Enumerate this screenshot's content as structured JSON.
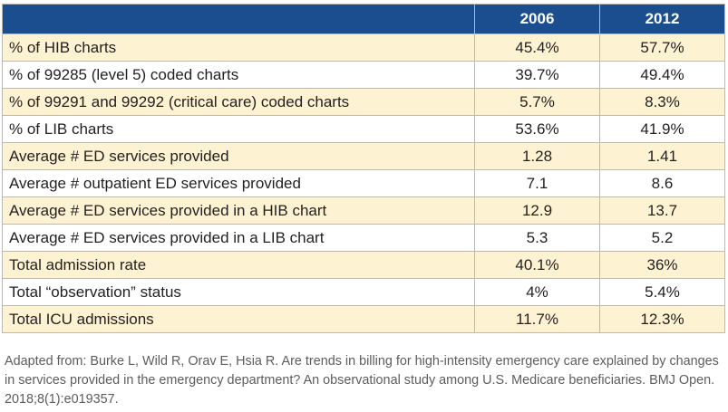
{
  "table": {
    "columns": [
      "",
      "2006",
      "2012"
    ],
    "rows": [
      {
        "label": "% of HIB charts",
        "y2006": "45.4%",
        "y2012": "57.7%"
      },
      {
        "label": "% of 99285 (level 5) coded charts",
        "y2006": "39.7%",
        "y2012": "49.4%"
      },
      {
        "label": "% of 99291 and 99292 (critical care) coded charts",
        "y2006": "5.7%",
        "y2012": "8.3%"
      },
      {
        "label": "% of LIB charts",
        "y2006": "53.6%",
        "y2012": "41.9%"
      },
      {
        "label": "Average # ED services provided",
        "y2006": "1.28",
        "y2012": "1.41"
      },
      {
        "label": "Average # outpatient ED services provided",
        "y2006": "7.1",
        "y2012": "8.6"
      },
      {
        "label": "Average # ED services provided in a HIB chart",
        "y2006": "12.9",
        "y2012": "13.7"
      },
      {
        "label": "Average # ED services provided in a LIB chart",
        "y2006": "5.3",
        "y2012": "5.2"
      },
      {
        "label": "Total admission rate",
        "y2006": "40.1%",
        "y2012": "36%"
      },
      {
        "label": "Total “observation” status",
        "y2006": "4%",
        "y2012": "5.4%"
      },
      {
        "label": "Total ICU admissions",
        "y2006": "11.7%",
        "y2012": "12.3%"
      }
    ]
  },
  "caption": "Adapted from: Burke L, Wild R, Orav E, Hsia R. Are trends in billing for high-intensity emergency care explained by changes in services provided in the emergency department? An observational study among U.S. Medicare beneficiaries. BMJ Open. 2018;8(1):e019357.",
  "colors": {
    "header_bg": "#1a4e8f",
    "header_text": "#ffffff",
    "stripe_bg": "#fdf3d3",
    "border": "#b9b9b9",
    "caption_text": "#5d5d5d"
  }
}
